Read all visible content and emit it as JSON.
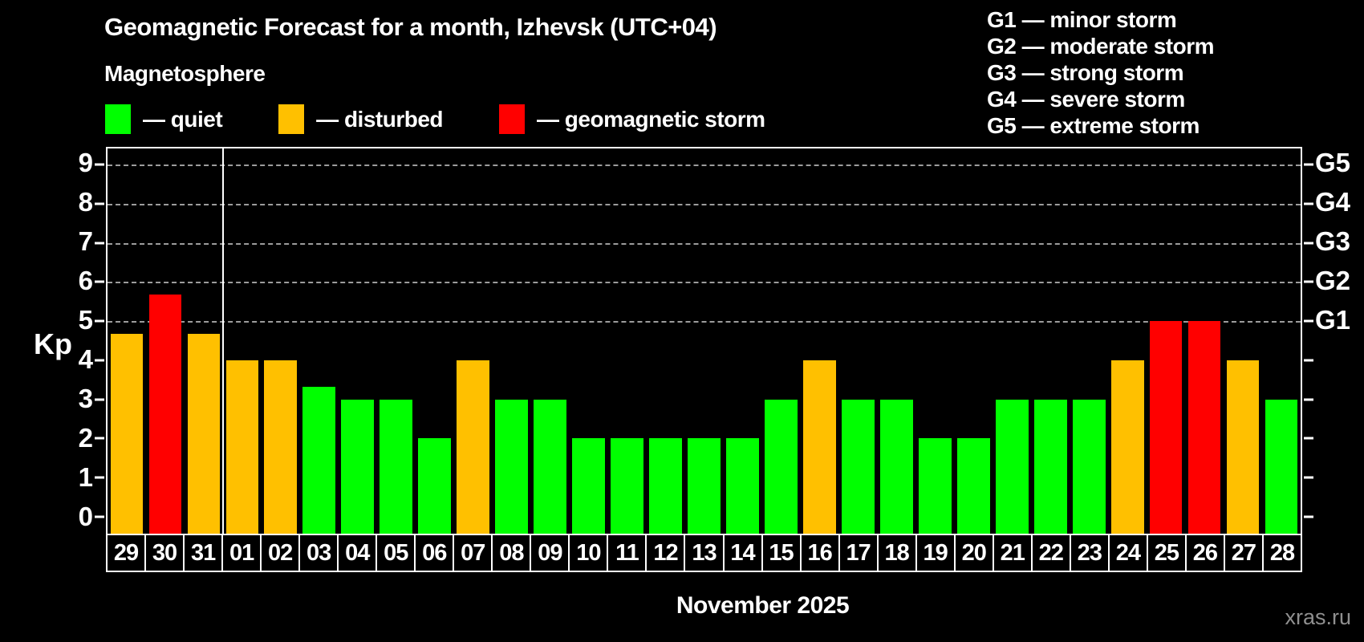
{
  "header": {
    "title": "Geomagnetic Forecast for a month, Izhevsk (UTC+04)",
    "subtitle": "Magnetosphere"
  },
  "legend": {
    "items": [
      {
        "key": "quiet",
        "label": "— quiet",
        "color": "#00FF00"
      },
      {
        "key": "disturbed",
        "label": "— disturbed",
        "color": "#FFC000"
      },
      {
        "key": "storm",
        "label": "— geomagnetic storm",
        "color": "#FF0000"
      }
    ]
  },
  "storm_scale_legend": {
    "items": [
      {
        "label": "G1 — minor storm"
      },
      {
        "label": "G2 — moderate storm"
      },
      {
        "label": "G3 — strong storm"
      },
      {
        "label": "G4 — severe storm"
      },
      {
        "label": "G5 — extreme storm"
      }
    ]
  },
  "axes": {
    "y_label": "Kp",
    "y_ticks": [
      0,
      1,
      2,
      3,
      4,
      5,
      6,
      7,
      8,
      9
    ],
    "g_labels": [
      {
        "level": 5,
        "label": "G1"
      },
      {
        "level": 6,
        "label": "G2"
      },
      {
        "level": 7,
        "label": "G3"
      },
      {
        "level": 8,
        "label": "G4"
      },
      {
        "level": 9,
        "label": "G5"
      }
    ],
    "x_title": "November 2025"
  },
  "watermark": "xras.ru",
  "chart_data": {
    "type": "bar",
    "title": "Geomagnetic Forecast for a month, Izhevsk (UTC+04)",
    "ylabel": "Kp",
    "xlabel": "November 2025",
    "ylim": [
      0,
      9
    ],
    "grid": "horizontal dashed lines at Kp 5-9 (G1-G5 levels)",
    "gridlines_at": [
      5,
      6,
      7,
      8,
      9
    ],
    "legend_position": "top-left",
    "month_separator_after_index": 2,
    "categories": [
      "29",
      "30",
      "31",
      "01",
      "02",
      "03",
      "04",
      "05",
      "06",
      "07",
      "08",
      "09",
      "10",
      "11",
      "12",
      "13",
      "14",
      "15",
      "16",
      "17",
      "18",
      "19",
      "20",
      "21",
      "22",
      "23",
      "24",
      "25",
      "26",
      "27",
      "28"
    ],
    "values": [
      4.67,
      5.67,
      4.67,
      4,
      4,
      3.33,
      3,
      3,
      2,
      4,
      3,
      3,
      2,
      2,
      2,
      2,
      2,
      3,
      4,
      3,
      3,
      2,
      2,
      3,
      3,
      3,
      4,
      5,
      5,
      4,
      3
    ],
    "statuses": [
      "disturbed",
      "storm",
      "disturbed",
      "disturbed",
      "disturbed",
      "quiet",
      "quiet",
      "quiet",
      "quiet",
      "disturbed",
      "quiet",
      "quiet",
      "quiet",
      "quiet",
      "quiet",
      "quiet",
      "quiet",
      "quiet",
      "disturbed",
      "quiet",
      "quiet",
      "quiet",
      "quiet",
      "quiet",
      "quiet",
      "quiet",
      "disturbed",
      "storm",
      "storm",
      "disturbed",
      "quiet"
    ],
    "colors": {
      "quiet": "#00FF00",
      "disturbed": "#FFC000",
      "storm": "#FF0000"
    }
  }
}
